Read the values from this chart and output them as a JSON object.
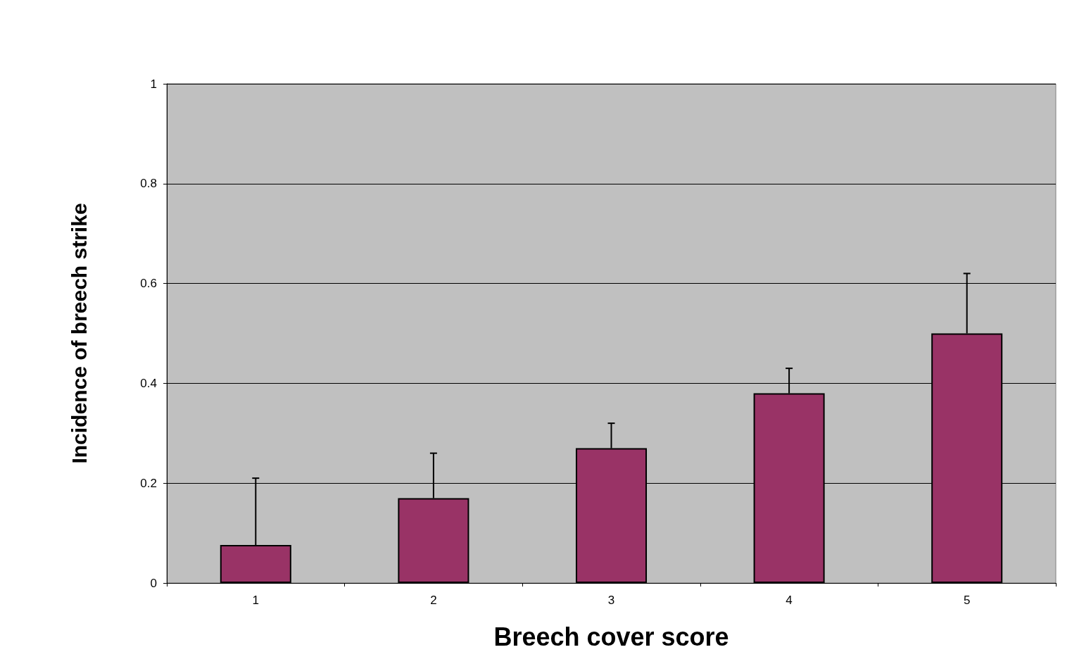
{
  "chart_data": {
    "type": "bar",
    "categories": [
      "1",
      "2",
      "3",
      "4",
      "5"
    ],
    "values": [
      0.076,
      0.17,
      0.27,
      0.38,
      0.5
    ],
    "errors": [
      [
        0.076,
        0.21
      ],
      [
        0.17,
        0.26
      ],
      [
        0.27,
        0.32
      ],
      [
        0.38,
        0.43
      ],
      [
        0.5,
        0.62
      ]
    ],
    "color": "#993366",
    "xlabel": "Breech cover score",
    "ylabel": "Incidence of breech strike",
    "ylim": [
      0,
      1
    ],
    "yticks": [
      0,
      0.2,
      0.4,
      0.6,
      0.8,
      1
    ],
    "grid": "y"
  }
}
